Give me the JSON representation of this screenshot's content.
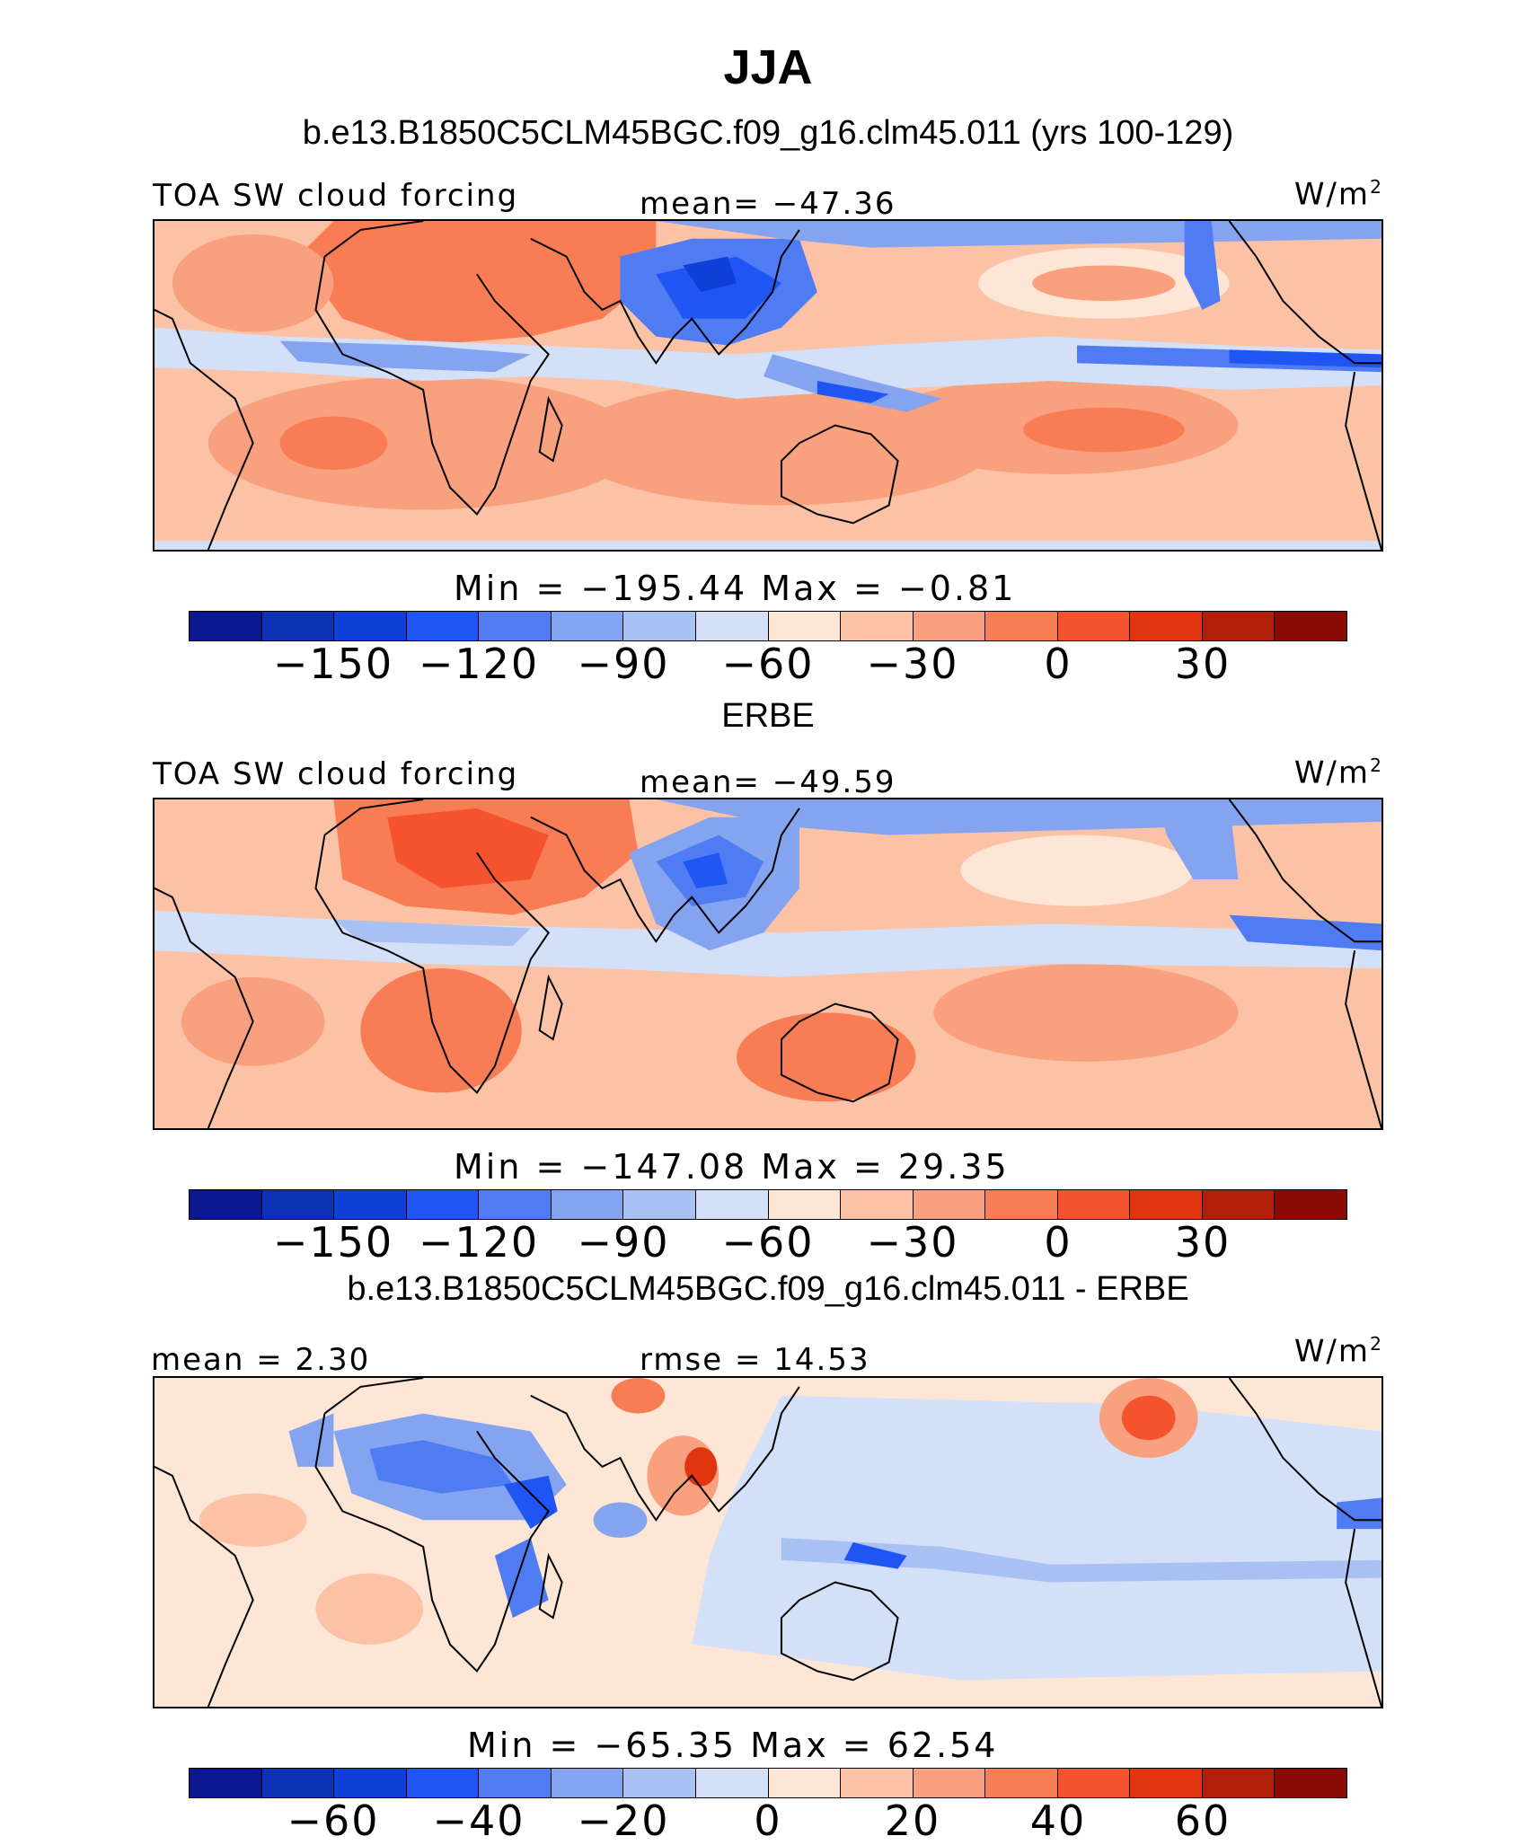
{
  "header": {
    "title": "JJA",
    "case_title": "b.e13.B1850C5CLM45BGC.f09_g16.clm45.011 (yrs 100-129)"
  },
  "panels": [
    {
      "id": "model",
      "left_label": "TOA SW cloud forcing",
      "center_label": "mean= −47.36",
      "units": "W/m",
      "units_sup": "2",
      "minmax": "Min = −195.44  Max =  −0.81",
      "ticks": [
        "−150",
        "−120",
        "−90",
        "−60",
        "−30",
        "0",
        "30"
      ]
    },
    {
      "id": "obs",
      "top_title": "ERBE",
      "left_label": "TOA SW cloud forcing",
      "center_label": "mean= −49.59",
      "units": "W/m",
      "units_sup": "2",
      "minmax": "Min = −147.08  Max =  29.35",
      "ticks": [
        "−150",
        "−120",
        "−90",
        "−60",
        "−30",
        "0",
        "30"
      ]
    },
    {
      "id": "diff",
      "top_title": "b.e13.B1850C5CLM45BGC.f09_g16.clm45.011 - ERBE",
      "left_label": "mean =   2.30",
      "center_label": "rmse =   14.53",
      "units": "W/m",
      "units_sup": "2",
      "minmax": "Min = −65.35  Max =  62.54",
      "ticks": [
        "−60",
        "−40",
        "−20",
        "0",
        "20",
        "40",
        "60"
      ]
    }
  ],
  "colorbar_colors": [
    "#0a1790",
    "#0c31b5",
    "#0f3fd6",
    "#1f55f2",
    "#4f7cf2",
    "#84a4f0",
    "#a9c0f2",
    "#d3e0f8",
    "#fde6d6",
    "#fbc2a6",
    "#f9a07e",
    "#f87d55",
    "#f5532e",
    "#e0350f",
    "#b11e09",
    "#8a0a05"
  ]
}
